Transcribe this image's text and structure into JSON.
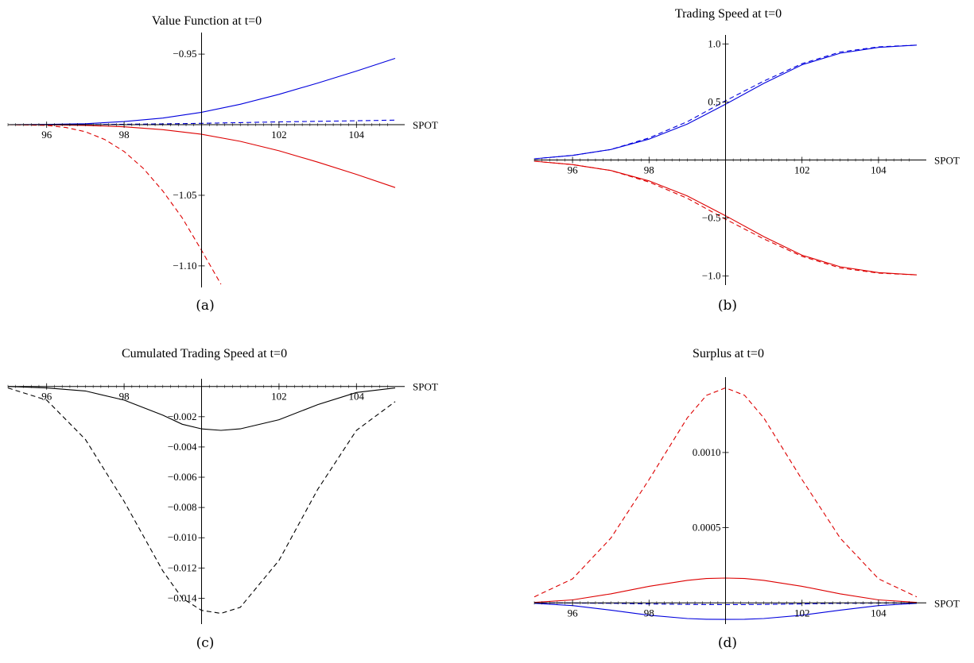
{
  "colors": {
    "blue": "#0000dd",
    "red": "#dd0000",
    "black": "#000000"
  },
  "chart_data": [
    {
      "id": "a",
      "type": "line",
      "title": "Value Function at t=0",
      "caption": "(a)",
      "xlabel": "SPOT",
      "xlim": [
        95,
        105
      ],
      "ylim": [
        -1.113,
        -0.937
      ],
      "x_axis_at_y": -1.0,
      "y_axis_at_x": 100,
      "xticks": [
        {
          "v": 96,
          "label": "96"
        },
        {
          "v": 98,
          "label": "98"
        },
        {
          "v": 102,
          "label": "102"
        },
        {
          "v": 104,
          "label": "104"
        }
      ],
      "yticks": [
        {
          "v": -0.95,
          "label": "−0.95"
        },
        {
          "v": -1.05,
          "label": "−1.05"
        },
        {
          "v": -1.1,
          "label": "−1.10"
        }
      ],
      "x": [
        95,
        96,
        97,
        98,
        99,
        100,
        101,
        102,
        103,
        104,
        105
      ],
      "series": [
        {
          "color": "blue",
          "style": "solid",
          "values": [
            -1.0,
            -0.9998,
            -0.9993,
            -0.9978,
            -0.9953,
            -0.9912,
            -0.9855,
            -0.9785,
            -0.9705,
            -0.962,
            -0.953
          ]
        },
        {
          "color": "blue",
          "style": "dashed",
          "values": [
            -1.0,
            -1.0,
            -0.9999,
            -0.9997,
            -0.9994,
            -0.999,
            -0.9985,
            -0.998,
            -0.9976,
            -0.9972,
            -0.9968
          ]
        },
        {
          "color": "red",
          "style": "solid",
          "values": [
            -1.0,
            -1.0001,
            -1.0005,
            -1.0015,
            -1.0035,
            -1.0068,
            -1.0118,
            -1.0185,
            -1.0265,
            -1.0352,
            -1.0445
          ]
        },
        {
          "color": "red",
          "style": "dashed",
          "x": [
            95,
            96,
            96.5,
            97,
            97.5,
            98,
            98.5,
            99,
            99.5,
            100,
            100.5
          ],
          "values": [
            -1.0,
            -1.0005,
            -1.002,
            -1.005,
            -1.0105,
            -1.019,
            -1.031,
            -1.047,
            -1.066,
            -1.089,
            -1.113
          ]
        }
      ]
    },
    {
      "id": "b",
      "type": "line",
      "title": "Trading Speed at t=0",
      "caption": "(b)",
      "xlabel": "SPOT",
      "xlim": [
        95,
        105
      ],
      "ylim": [
        -1.05,
        1.05
      ],
      "x_axis_at_y": 0,
      "y_axis_at_x": 100,
      "xticks": [
        {
          "v": 96,
          "label": "96"
        },
        {
          "v": 98,
          "label": "98"
        },
        {
          "v": 102,
          "label": "102"
        },
        {
          "v": 104,
          "label": "104"
        }
      ],
      "yticks": [
        {
          "v": 1.0,
          "label": "1.0"
        },
        {
          "v": 0.5,
          "label": "0.5"
        },
        {
          "v": -0.5,
          "label": "−0.5"
        },
        {
          "v": -1.0,
          "label": "−1.0"
        }
      ],
      "x": [
        95,
        96,
        97,
        98,
        99,
        100,
        101,
        102,
        103,
        104,
        105
      ],
      "series": [
        {
          "color": "blue",
          "style": "solid",
          "values": [
            0.01,
            0.04,
            0.09,
            0.18,
            0.31,
            0.48,
            0.66,
            0.82,
            0.92,
            0.97,
            0.99
          ]
        },
        {
          "color": "blue",
          "style": "dashed",
          "values": [
            0.01,
            0.04,
            0.09,
            0.19,
            0.33,
            0.51,
            0.68,
            0.83,
            0.93,
            0.975,
            0.99
          ]
        },
        {
          "color": "red",
          "style": "solid",
          "values": [
            -0.01,
            -0.04,
            -0.09,
            -0.18,
            -0.31,
            -0.48,
            -0.66,
            -0.82,
            -0.92,
            -0.97,
            -0.99
          ]
        },
        {
          "color": "red",
          "style": "dashed",
          "values": [
            -0.01,
            -0.04,
            -0.09,
            -0.19,
            -0.33,
            -0.51,
            -0.68,
            -0.83,
            -0.93,
            -0.975,
            -0.99
          ]
        }
      ]
    },
    {
      "id": "c",
      "type": "line",
      "title": "Cumulated Trading Speed at t=0",
      "caption": "(c)",
      "xlabel": "SPOT",
      "xlim": [
        95,
        105
      ],
      "ylim": [
        -0.0155,
        0.0003
      ],
      "x_axis_at_y": 0,
      "y_axis_at_x": 100,
      "xticks": [
        {
          "v": 96,
          "label": "96"
        },
        {
          "v": 98,
          "label": "98"
        },
        {
          "v": 102,
          "label": "102"
        },
        {
          "v": 104,
          "label": "104"
        }
      ],
      "yticks": [
        {
          "v": -0.002,
          "label": "−0.002"
        },
        {
          "v": -0.004,
          "label": "−0.004"
        },
        {
          "v": -0.006,
          "label": "−0.006"
        },
        {
          "v": -0.008,
          "label": "−0.008"
        },
        {
          "v": -0.01,
          "label": "−0.010"
        },
        {
          "v": -0.012,
          "label": "−0.012"
        },
        {
          "v": -0.014,
          "label": "−0.014"
        }
      ],
      "x": [
        95,
        96,
        97,
        98,
        99,
        99.5,
        100,
        100.5,
        101,
        102,
        103,
        104,
        105
      ],
      "series": [
        {
          "color": "black",
          "style": "solid",
          "values": [
            0.0,
            -0.0001,
            -0.0003,
            -0.0009,
            -0.0019,
            -0.0025,
            -0.0028,
            -0.0029,
            -0.0028,
            -0.0022,
            -0.0012,
            -0.0004,
            -0.0001
          ]
        },
        {
          "color": "black",
          "style": "dashed",
          "values": [
            -0.0001,
            -0.0009,
            -0.0035,
            -0.0076,
            -0.0122,
            -0.014,
            -0.0148,
            -0.015,
            -0.0146,
            -0.0115,
            -0.0068,
            -0.0029,
            -0.001
          ]
        }
      ]
    },
    {
      "id": "d",
      "type": "line",
      "title": "Surplus at t=0",
      "caption": "(d)",
      "xlabel": "SPOT",
      "xlim": [
        95,
        105
      ],
      "ylim": [
        -0.00012,
        0.00148
      ],
      "x_axis_at_y": 0,
      "y_axis_at_x": 100,
      "xticks": [
        {
          "v": 96,
          "label": "96"
        },
        {
          "v": 98,
          "label": "98"
        },
        {
          "v": 102,
          "label": "102"
        },
        {
          "v": 104,
          "label": "104"
        }
      ],
      "yticks": [
        {
          "v": 0.001,
          "label": "0.0010"
        },
        {
          "v": 0.0005,
          "label": "0.0005"
        }
      ],
      "x": [
        95,
        96,
        97,
        98,
        99,
        99.5,
        100,
        100.5,
        101,
        102,
        103,
        104,
        105
      ],
      "series": [
        {
          "color": "red",
          "style": "dashed",
          "values": [
            4e-05,
            0.00016,
            0.00043,
            0.00082,
            0.00123,
            0.00138,
            0.00143,
            0.00138,
            0.00123,
            0.00082,
            0.00043,
            0.00016,
            4e-05
          ]
        },
        {
          "color": "red",
          "style": "solid",
          "values": [
            3e-06,
            2e-05,
            6e-05,
            0.00011,
            0.00015,
            0.000162,
            0.000165,
            0.000162,
            0.00015,
            0.00011,
            6e-05,
            2e-05,
            3e-06
          ]
        },
        {
          "color": "blue",
          "style": "dashed",
          "values": [
            0.0,
            -1e-06,
            -3e-06,
            -7e-06,
            -1e-05,
            -1.1e-05,
            -1.2e-05,
            -1.1e-05,
            -1e-05,
            -7e-06,
            -3e-06,
            -1e-06,
            0.0
          ]
        },
        {
          "color": "blue",
          "style": "solid",
          "values": [
            -3e-06,
            -1.8e-05,
            -4.8e-05,
            -8.2e-05,
            -0.000104,
            -0.000109,
            -0.00011,
            -0.000109,
            -0.000104,
            -8.2e-05,
            -4.8e-05,
            -1.8e-05,
            -3e-06
          ]
        }
      ]
    }
  ]
}
